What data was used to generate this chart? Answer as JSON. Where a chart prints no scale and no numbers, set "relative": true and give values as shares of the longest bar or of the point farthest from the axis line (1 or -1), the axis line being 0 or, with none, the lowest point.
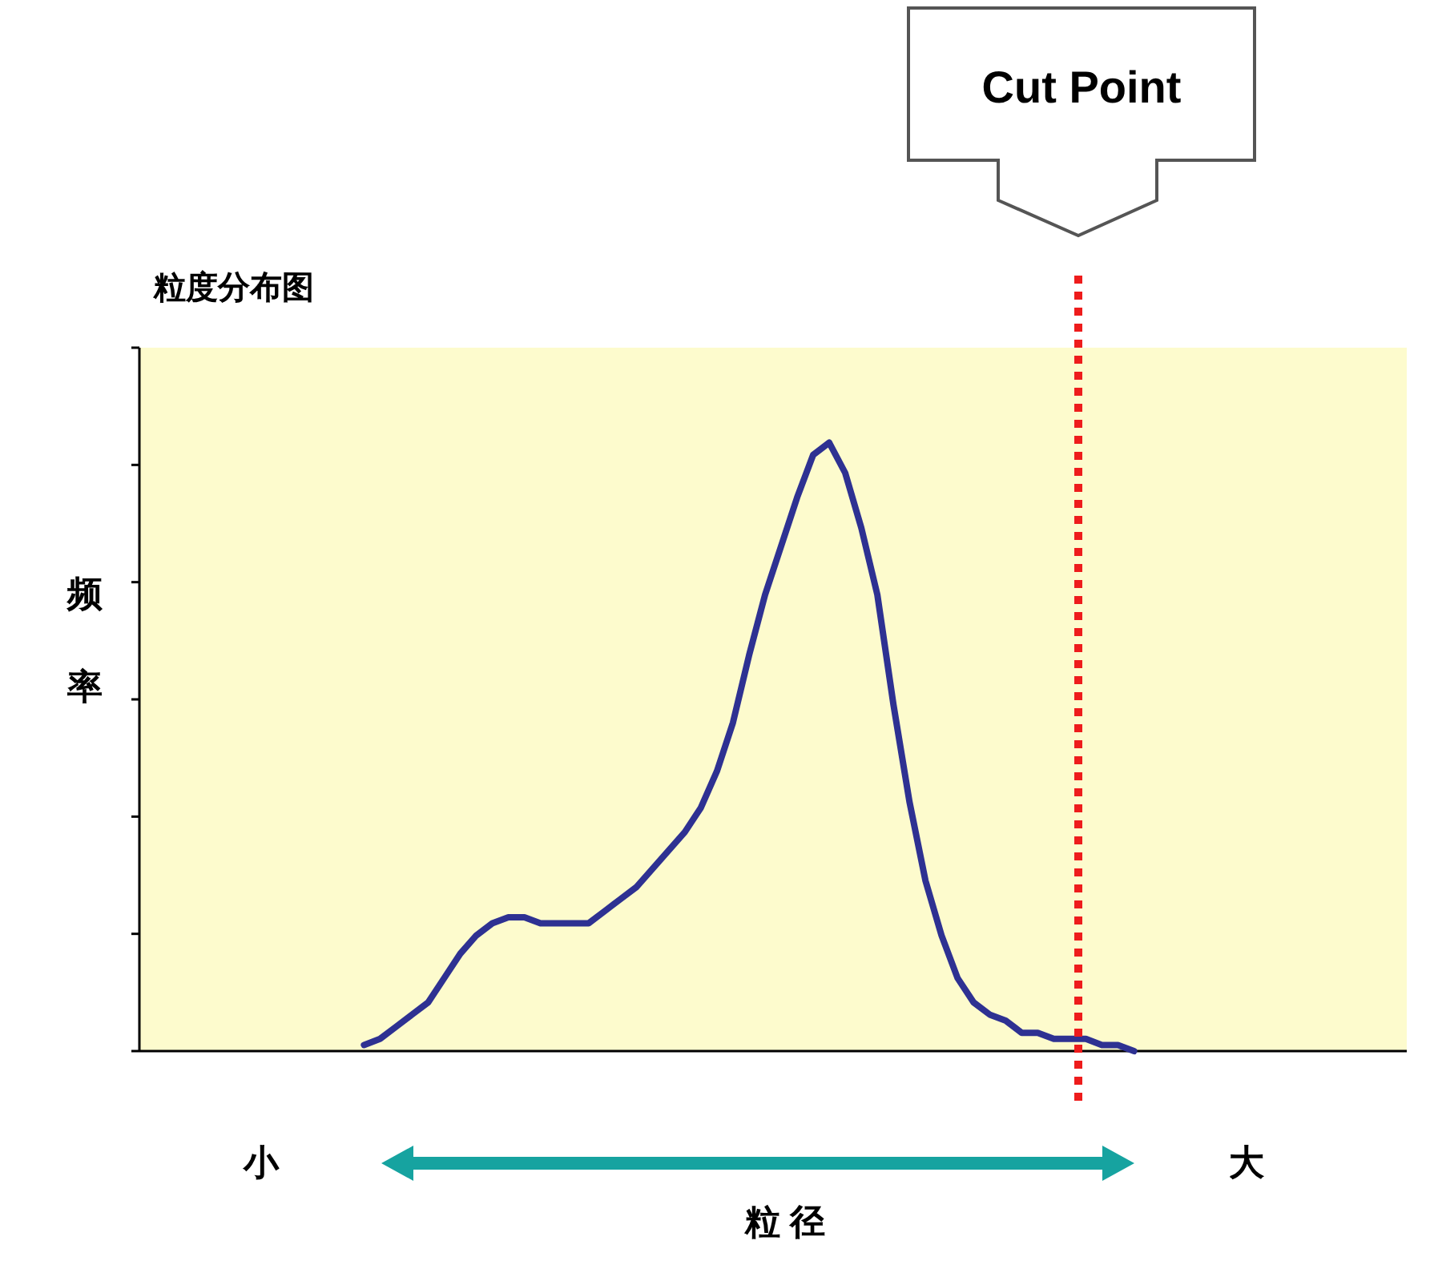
{
  "chart_data": {
    "type": "line",
    "title": "粒度分布图",
    "ylabel": "频率",
    "xlabel": "粒 径",
    "relative": true,
    "marker": "none",
    "line_style": "solid",
    "categories": [
      null,
      null,
      null,
      null,
      null,
      null,
      null,
      null,
      null,
      null,
      null,
      null,
      null,
      null,
      null,
      null,
      null,
      null,
      null,
      null,
      null,
      null,
      null,
      null,
      null,
      null,
      null,
      null,
      null,
      null,
      null,
      null,
      null,
      null,
      null,
      null,
      null,
      null,
      null,
      null,
      null,
      null,
      null,
      null,
      null,
      null,
      null,
      null,
      null,
      null,
      null,
      null,
      null,
      null,
      null,
      null,
      null,
      null,
      null,
      null,
      null,
      null,
      null,
      null,
      null,
      null,
      null,
      null,
      null,
      null,
      null,
      null,
      null,
      null,
      null,
      null,
      null,
      null,
      null,
      null
    ],
    "series": [
      {
        "color": "#2e3192",
        "values": [
          null,
          null,
          null,
          null,
          null,
          null,
          null,
          null,
          null,
          null,
          null,
          null,
          null,
          null,
          0.01,
          0.02,
          0.04,
          0.06,
          0.08,
          0.12,
          0.16,
          0.19,
          0.21,
          0.22,
          0.22,
          0.21,
          0.21,
          0.21,
          0.21,
          0.23,
          0.25,
          0.27,
          0.3,
          0.33,
          0.36,
          0.4,
          0.46,
          0.54,
          0.65,
          0.75,
          0.83,
          0.91,
          0.98,
          1.0,
          0.95,
          0.86,
          0.75,
          0.57,
          0.41,
          0.28,
          0.19,
          0.12,
          0.08,
          0.06,
          0.05,
          0.03,
          0.03,
          0.02,
          0.02,
          0.02,
          0.01,
          0.01,
          0.0,
          null,
          null,
          null,
          null,
          null,
          null,
          null,
          null,
          null,
          null,
          null,
          null,
          null,
          null,
          null,
          null,
          null
        ]
      }
    ],
    "annotations": [
      "小",
      "大",
      "Cut Point"
    ]
  }
}
